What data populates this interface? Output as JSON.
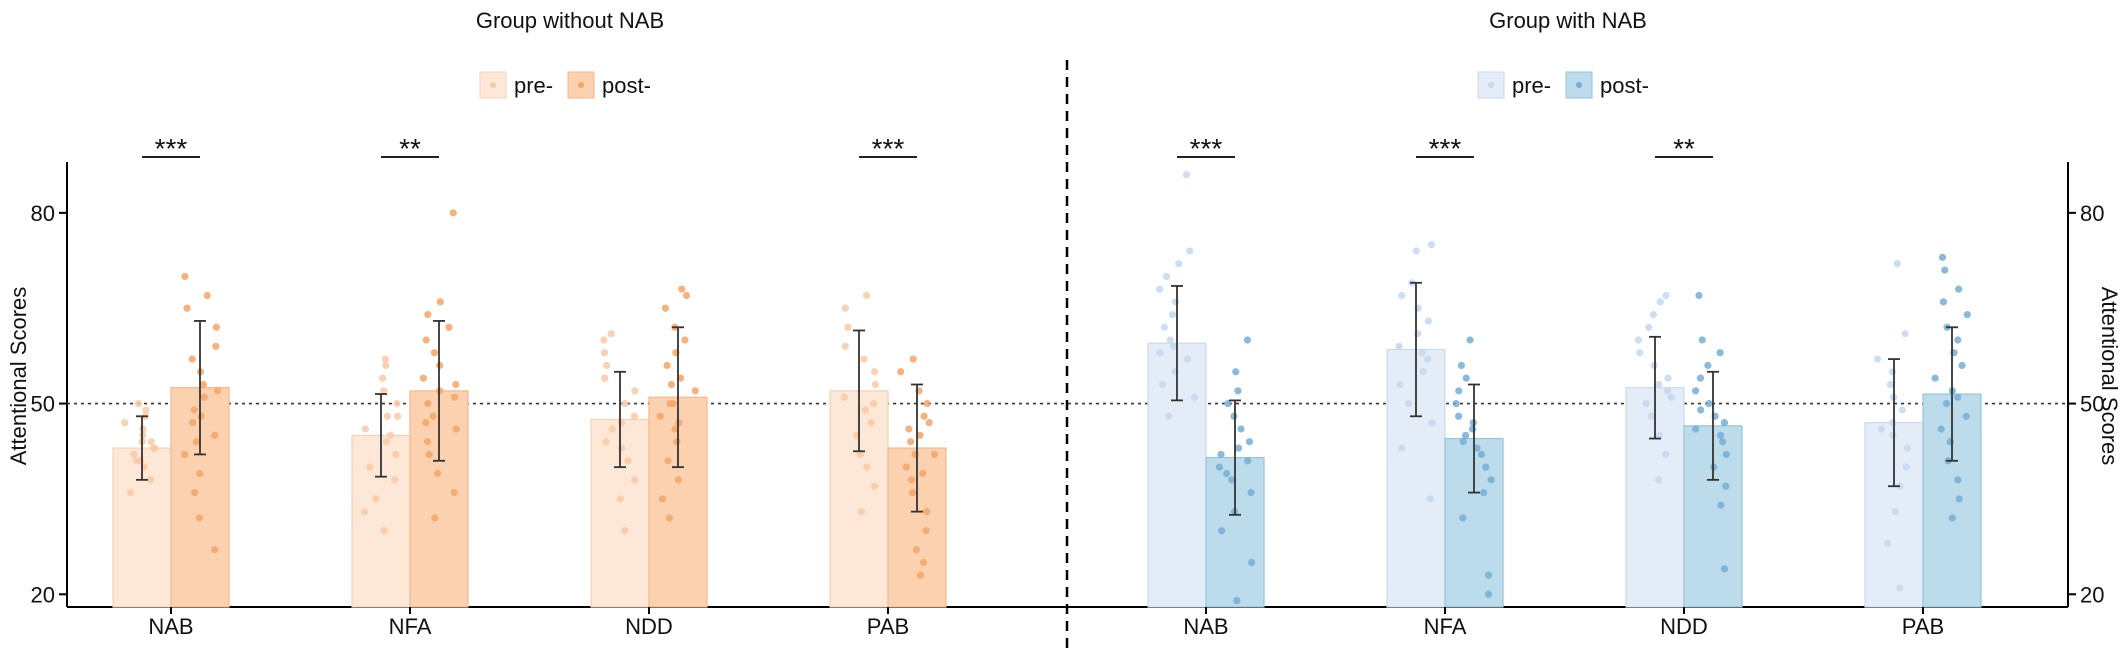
{
  "chart_data": {
    "type": "bar",
    "ylabel": "Attentional Scores",
    "ylim": [
      18,
      88
    ],
    "yticks": [
      20,
      50,
      80
    ],
    "reference_line": 50,
    "categories": [
      "NAB",
      "NFA",
      "NDD",
      "PAB"
    ],
    "panels": [
      {
        "title": "Group without NAB",
        "colors": {
          "pre": "#fde8d8",
          "post": "#fbd1b0",
          "pre_dot": "#f9c9a4",
          "post_dot": "#f5a566"
        },
        "legend": [
          "pre-",
          "post-"
        ],
        "series": [
          {
            "name": "pre-",
            "values": [
              43,
              45,
              47.5,
              52
            ],
            "sd": [
              5,
              6.5,
              7.5,
              9.5
            ]
          },
          {
            "name": "post-",
            "values": [
              52.5,
              52,
              51,
              43
            ],
            "sd": [
              10.5,
              11,
              11,
              10
            ]
          }
        ],
        "significance": [
          "***",
          "**",
          "",
          "***"
        ],
        "points": {
          "pre": [
            [
              36,
              38,
              40,
              41,
              42,
              43,
              44,
              44,
              45,
              46,
              47,
              48,
              49,
              50,
              43,
              41
            ],
            [
              30,
              33,
              35,
              38,
              40,
              42,
              44,
              45,
              46,
              48,
              50,
              52,
              54,
              56,
              57,
              48
            ],
            [
              30,
              35,
              38,
              41,
              44,
              46,
              48,
              50,
              52,
              54,
              56,
              58,
              60,
              61,
              47,
              43
            ],
            [
              33,
              37,
              40,
              42,
              45,
              47,
              49,
              51,
              53,
              55,
              57,
              59,
              62,
              65,
              67,
              50
            ]
          ],
          "post": [
            [
              27,
              32,
              36,
              39,
              42,
              45,
              47,
              49,
              51,
              53,
              55,
              57,
              59,
              62,
              65,
              67,
              70,
              52,
              48,
              44
            ],
            [
              32,
              36,
              39,
              42,
              44,
              46,
              48,
              50,
              52,
              54,
              56,
              58,
              60,
              62,
              64,
              66,
              80,
              51,
              47,
              53
            ],
            [
              32,
              35,
              38,
              41,
              44,
              46,
              48,
              50,
              52,
              54,
              56,
              58,
              60,
              62,
              65,
              67,
              68,
              50,
              47,
              53
            ],
            [
              23,
              25,
              27,
              30,
              33,
              36,
              38,
              40,
              42,
              44,
              46,
              48,
              50,
              52,
              55,
              57,
              42,
              45,
              39,
              47
            ]
          ]
        }
      },
      {
        "title": "Group with NAB",
        "colors": {
          "pre": "#e4ecf7",
          "post": "#bcdcec",
          "pre_dot": "#c4d8ee",
          "post_dot": "#74aed6"
        },
        "legend": [
          "pre-",
          "post-"
        ],
        "series": [
          {
            "name": "pre-",
            "values": [
              59.5,
              58.5,
              52.5,
              47
            ],
            "sd": [
              9,
              10.5,
              8,
              10
            ]
          },
          {
            "name": "post-",
            "values": [
              41.5,
              44.5,
              46.5,
              51.5
            ],
            "sd": [
              9,
              8.5,
              8.5,
              10.5
            ]
          }
        ],
        "significance": [
          "***",
          "***",
          "**",
          ""
        ],
        "points": {
          "pre": [
            [
              48,
              51,
              53,
              55,
              57,
              59,
              60,
              62,
              64,
              66,
              68,
              70,
              72,
              74,
              86,
              58
            ],
            [
              35,
              43,
              47,
              50,
              53,
              55,
              57,
              59,
              61,
              63,
              65,
              67,
              69,
              74,
              75,
              58
            ],
            [
              38,
              42,
              45,
              48,
              50,
              52,
              54,
              56,
              58,
              60,
              62,
              64,
              66,
              67,
              53,
              51
            ],
            [
              21,
              28,
              33,
              37,
              40,
              43,
              45,
              47,
              49,
              51,
              53,
              55,
              57,
              61,
              72,
              46
            ]
          ],
          "post": [
            [
              19,
              25,
              30,
              33,
              36,
              38,
              40,
              42,
              44,
              46,
              48,
              50,
              52,
              55,
              60,
              41,
              39,
              43
            ],
            [
              20,
              23,
              32,
              36,
              38,
              40,
              42,
              44,
              46,
              48,
              50,
              52,
              54,
              56,
              60,
              45,
              43,
              47
            ],
            [
              24,
              34,
              37,
              40,
              42,
              44,
              46,
              48,
              50,
              52,
              54,
              56,
              58,
              60,
              67,
              47,
              45,
              49
            ],
            [
              32,
              35,
              38,
              41,
              44,
              46,
              48,
              50,
              52,
              54,
              56,
              58,
              60,
              62,
              64,
              66,
              68,
              71,
              73,
              51
            ]
          ]
        }
      }
    ]
  }
}
